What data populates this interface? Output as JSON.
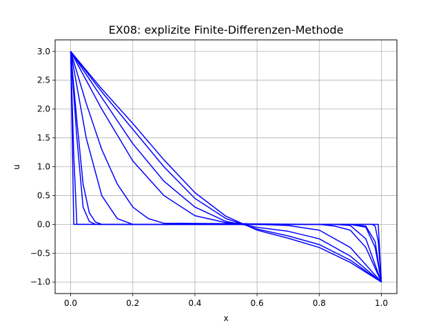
{
  "chart_data": {
    "type": "line",
    "title": "EX08: explizite Finite-Differenzen-Methode",
    "xlabel": "x",
    "ylabel": "u",
    "xlim": [
      -0.05,
      1.05
    ],
    "ylim": [
      -1.2,
      3.2
    ],
    "xticks": [
      0.0,
      0.2,
      0.4,
      0.6,
      0.8,
      1.0
    ],
    "xtick_labels": [
      "0.0",
      "0.2",
      "0.4",
      "0.6",
      "0.8",
      "1.0"
    ],
    "yticks": [
      -1.0,
      -0.5,
      0.0,
      0.5,
      1.0,
      1.5,
      2.0,
      2.5,
      3.0
    ],
    "ytick_labels": [
      "−1.0",
      "−0.5",
      "0.0",
      "0.5",
      "1.0",
      "1.5",
      "2.0",
      "2.5",
      "3.0"
    ],
    "grid": true,
    "line_color": "#0000ff",
    "boundary_values": {
      "left": 3.0,
      "right": -1.0
    },
    "series": [
      {
        "x": [
          0.0,
          0.01,
          0.99,
          1.0
        ],
        "y": [
          3.0,
          0.0,
          0.0,
          -1.0
        ]
      },
      {
        "x": [
          0.0,
          0.01,
          0.02,
          0.97,
          0.98,
          0.99,
          1.0
        ],
        "y": [
          3.0,
          1.2,
          0.0,
          0.0,
          -0.03,
          -0.3,
          -1.0
        ]
      },
      {
        "x": [
          0.0,
          0.02,
          0.04,
          0.06,
          0.08,
          0.9,
          0.95,
          0.98,
          1.0
        ],
        "y": [
          3.0,
          1.5,
          0.3,
          0.05,
          0.0,
          0.0,
          -0.03,
          -0.3,
          -1.0
        ]
      },
      {
        "x": [
          0.0,
          0.02,
          0.04,
          0.06,
          0.08,
          0.1,
          0.9,
          0.95,
          0.98,
          1.0
        ],
        "y": [
          3.0,
          1.8,
          0.7,
          0.2,
          0.04,
          0.0,
          0.0,
          -0.05,
          -0.4,
          -1.0
        ]
      },
      {
        "x": [
          0.0,
          0.05,
          0.1,
          0.15,
          0.2,
          0.85,
          0.9,
          0.95,
          1.0
        ],
        "y": [
          3.0,
          1.5,
          0.5,
          0.1,
          0.0,
          0.0,
          -0.02,
          -0.25,
          -1.0
        ]
      },
      {
        "x": [
          0.0,
          0.05,
          0.1,
          0.15,
          0.2,
          0.25,
          0.3,
          0.8,
          0.85,
          0.9,
          0.95,
          1.0
        ],
        "y": [
          3.0,
          2.1,
          1.3,
          0.7,
          0.3,
          0.1,
          0.02,
          0.0,
          -0.03,
          -0.1,
          -0.4,
          -1.0
        ]
      },
      {
        "x": [
          0.0,
          0.1,
          0.2,
          0.3,
          0.4,
          0.5,
          0.6,
          0.7,
          0.8,
          0.9,
          1.0
        ],
        "y": [
          3.0,
          2.0,
          1.1,
          0.5,
          0.15,
          0.03,
          0.0,
          -0.02,
          -0.1,
          -0.4,
          -1.0
        ]
      },
      {
        "x": [
          0.0,
          0.1,
          0.2,
          0.3,
          0.4,
          0.5,
          0.6,
          0.7,
          0.8,
          0.9,
          1.0
        ],
        "y": [
          3.0,
          2.2,
          1.4,
          0.75,
          0.3,
          0.05,
          -0.05,
          -0.12,
          -0.25,
          -0.55,
          -1.0
        ]
      },
      {
        "x": [
          0.0,
          0.1,
          0.2,
          0.3,
          0.4,
          0.5,
          0.6,
          0.7,
          0.8,
          0.9,
          1.0
        ],
        "y": [
          3.0,
          2.3,
          1.65,
          1.0,
          0.45,
          0.1,
          -0.08,
          -0.2,
          -0.35,
          -0.62,
          -1.0
        ]
      },
      {
        "x": [
          0.0,
          0.1,
          0.2,
          0.3,
          0.4,
          0.5,
          0.6,
          0.7,
          0.8,
          0.9,
          1.0
        ],
        "y": [
          3.0,
          2.35,
          1.75,
          1.12,
          0.55,
          0.14,
          -0.1,
          -0.24,
          -0.4,
          -0.66,
          -1.0
        ]
      }
    ]
  }
}
